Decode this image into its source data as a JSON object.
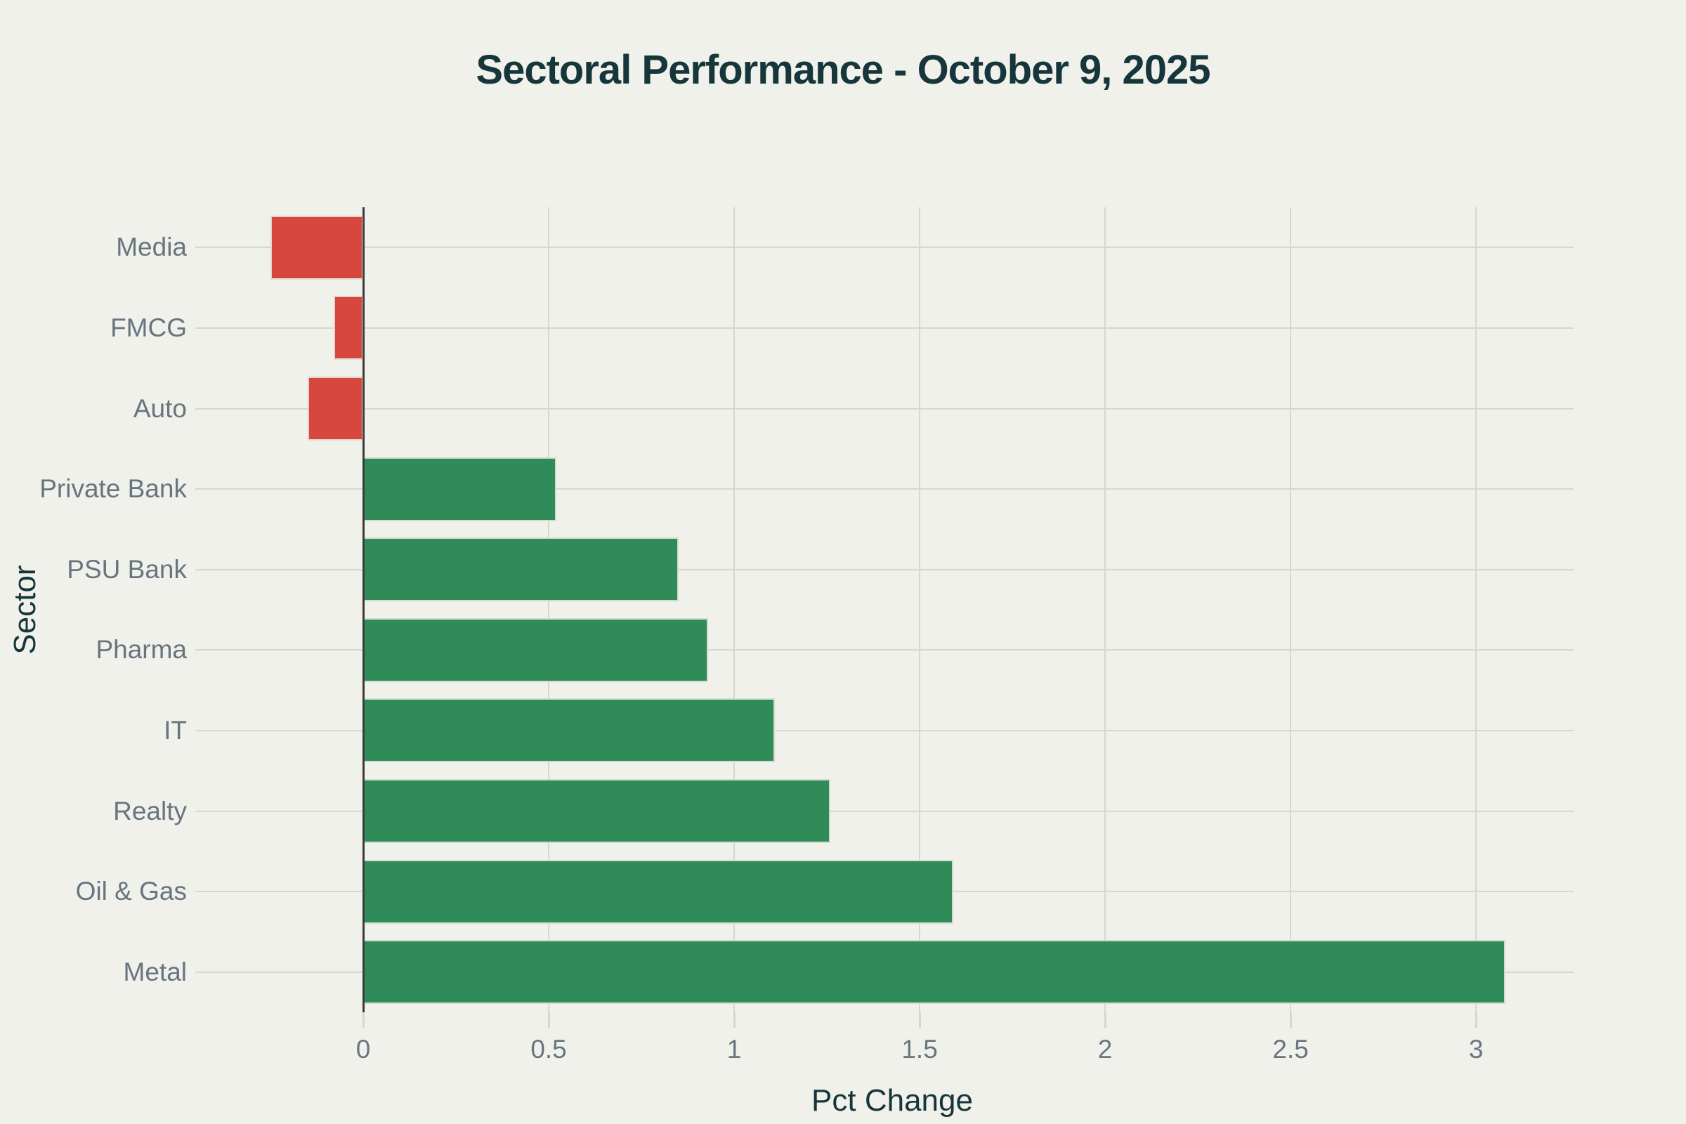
{
  "chart_data": {
    "type": "bar",
    "orientation": "horizontal",
    "title": "Sectoral Performance - October 9, 2025",
    "xlabel": "Pct Change",
    "ylabel": "Sector",
    "categories": [
      "Media",
      "FMCG",
      "Auto",
      "Private Bank",
      "PSU Bank",
      "Pharma",
      "IT",
      "Realty",
      "Oil & Gas",
      "Metal"
    ],
    "values": [
      -0.25,
      -0.08,
      -0.15,
      0.52,
      0.85,
      0.93,
      1.11,
      1.26,
      1.59,
      3.08
    ],
    "xtick_values": [
      0,
      0.5,
      1,
      1.5,
      2,
      2.5,
      3
    ],
    "xtick_labels": [
      "0",
      "0.5",
      "1",
      "1.5",
      "2",
      "2.5",
      "3"
    ],
    "xlim": [
      -0.411,
      3.263
    ],
    "grid": true,
    "legend": false,
    "colors": {
      "positive": "#2f8c58",
      "negative": "#d7463f",
      "background": "#f0f1ea",
      "grid": "#d8d6cf",
      "zero_line": "#3c3c3c",
      "tick_label": "#68757f",
      "title": "#17363c",
      "axis_title": "#17363c"
    }
  }
}
